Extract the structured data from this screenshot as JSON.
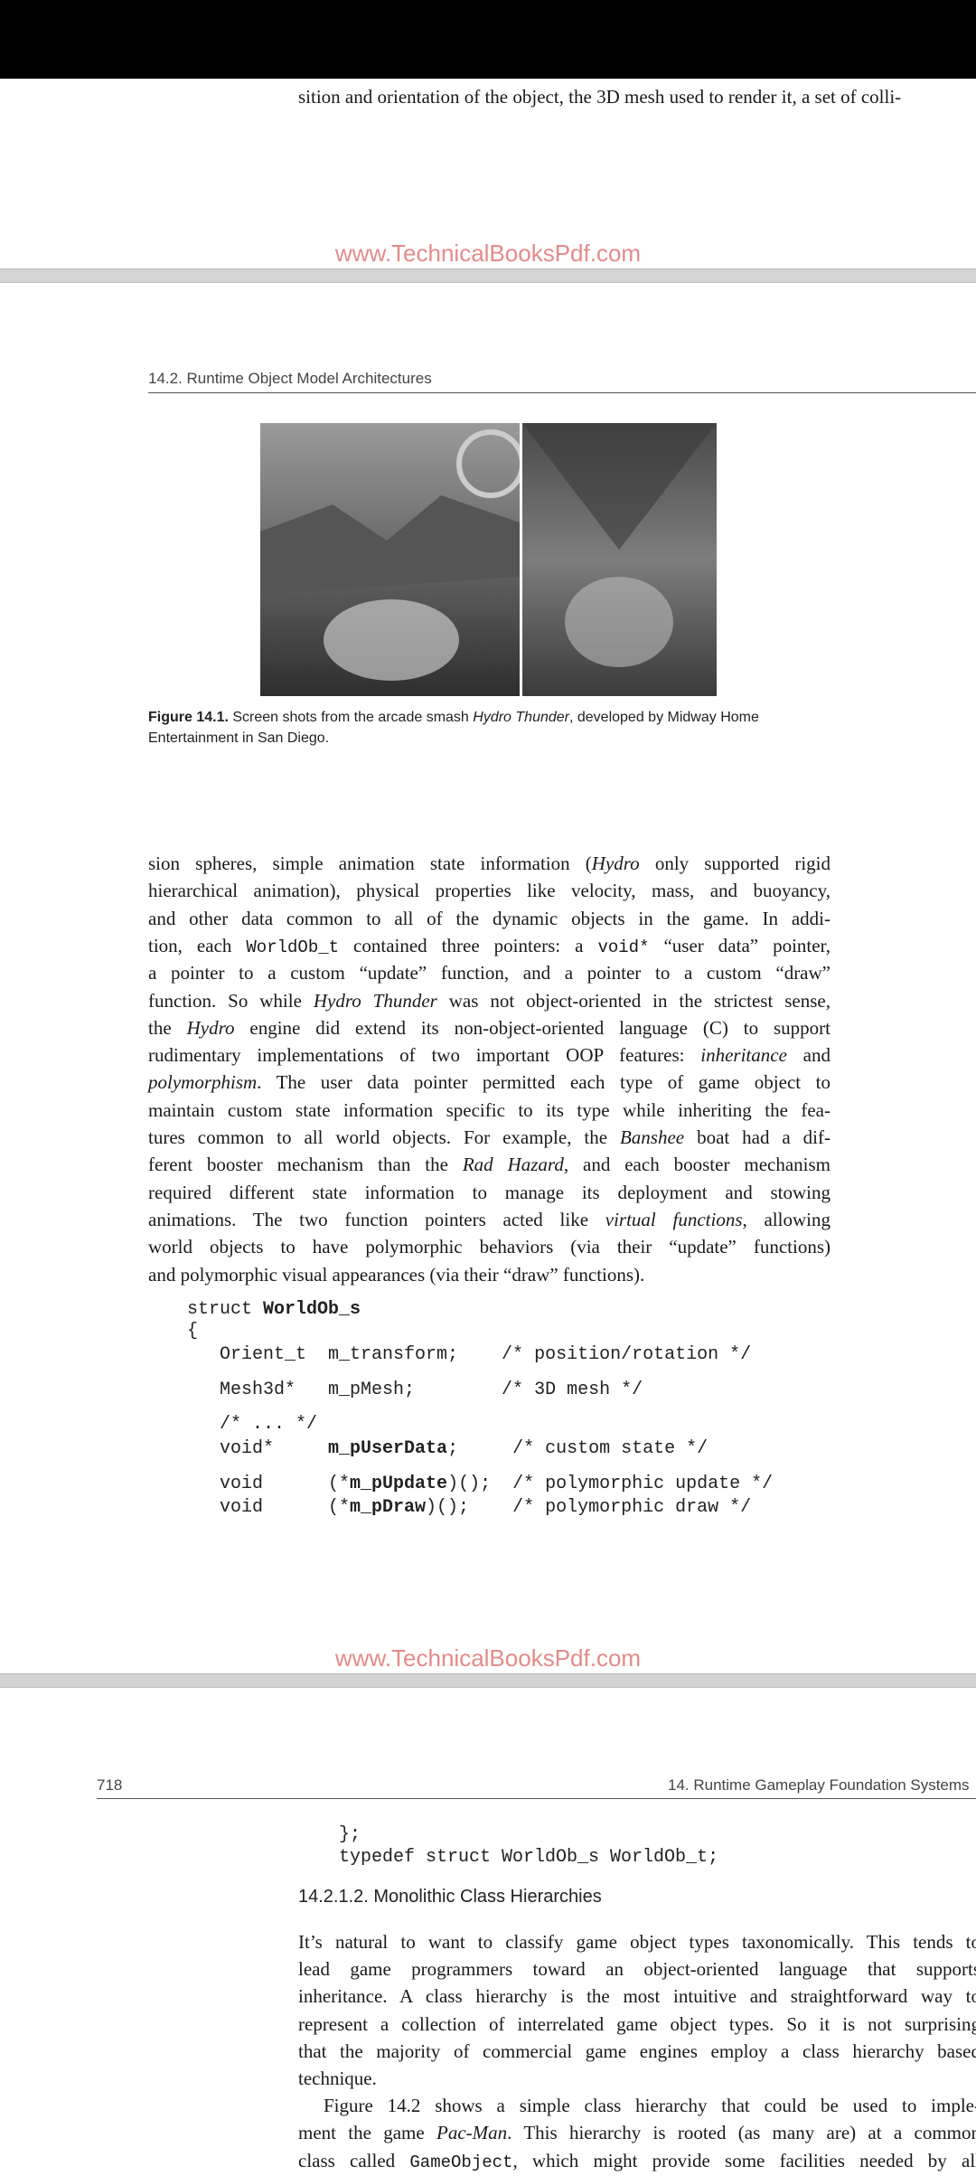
{
  "top_fragment": "sition and orientation of the object, the 3D mesh used to render it, a set of colli-",
  "watermarks": [
    "www.TechnicalBooksPdf.com",
    "www.TechnicalBooksPdf.com"
  ],
  "page1": {
    "running_head": "14.2. Runtime Object Model Architectures",
    "caption": [
      [
        {
          "t": "Figure 14.1.",
          "s": "b"
        },
        {
          "t": "  Screen shots from the arcade smash "
        },
        {
          "t": "Hydro Thunder",
          "s": "i"
        },
        {
          "t": ", developed by Midway Home"
        }
      ],
      [
        {
          "t": "Entertainment in San Diego."
        }
      ]
    ],
    "body": [
      [
        {
          "t": "sion spheres, simple animation state information ("
        },
        {
          "t": "Hydro",
          "s": "i"
        },
        {
          "t": " only supported rigid"
        }
      ],
      [
        {
          "t": "hierarchical animation), physical properties like velocity, mass, and buoyancy,"
        }
      ],
      [
        {
          "t": "and other data common to all of the dynamic objects in the game. In addi-"
        }
      ],
      [
        {
          "t": "tion, each "
        },
        {
          "t": "WorldOb_t",
          "s": "m"
        },
        {
          "t": " contained three pointers: a "
        },
        {
          "t": "void*",
          "s": "m"
        },
        {
          "t": " “user data” pointer,"
        }
      ],
      [
        {
          "t": "a pointer to a custom “update” function, and a pointer to a custom “draw”"
        }
      ],
      [
        {
          "t": "function. So while "
        },
        {
          "t": "Hydro Thunder",
          "s": "i"
        },
        {
          "t": " was not object-oriented in the strictest sense,"
        }
      ],
      [
        {
          "t": "the "
        },
        {
          "t": "Hydro",
          "s": "i"
        },
        {
          "t": " engine did extend its non-object-oriented language (C) to support"
        }
      ],
      [
        {
          "t": "rudimentary implementations of two important OOP features: "
        },
        {
          "t": "inheritance",
          "s": "i"
        },
        {
          "t": " and"
        }
      ],
      [
        {
          "t": "polymorphism",
          "s": "i"
        },
        {
          "t": ". The user data pointer permitted each type of game object to"
        }
      ],
      [
        {
          "t": "maintain custom state information specific to its type while inheriting the fea-"
        }
      ],
      [
        {
          "t": "tures common to all world objects. For example, the "
        },
        {
          "t": "Banshee",
          "s": "i"
        },
        {
          "t": " boat had a dif-"
        }
      ],
      [
        {
          "t": "ferent booster mechanism than the "
        },
        {
          "t": "Rad Hazard",
          "s": "i"
        },
        {
          "t": ", and each booster mechanism"
        }
      ],
      [
        {
          "t": "required different state information to manage its deployment and stowing"
        }
      ],
      [
        {
          "t": "animations. The two function pointers acted like "
        },
        {
          "t": "virtual functions",
          "s": "i"
        },
        {
          "t": ", allowing"
        }
      ],
      [
        {
          "t": "world objects to have polymorphic behaviors (via their “update” functions)"
        }
      ],
      [
        {
          "t": "and polymorphic visual appearances (via their “draw” functions)."
        }
      ]
    ],
    "paragraph_ends": [
      15
    ],
    "code": [
      [
        {
          "t": "struct "
        },
        {
          "t": "WorldOb_s",
          "s": "b"
        }
      ],
      [
        {
          "t": "{"
        }
      ],
      [
        {
          "t": "   Orient_t  m_transform;    /* position/rotation */"
        }
      ],
      [
        {
          "t": "   Mesh3d*   m_pMesh;        /* 3D mesh */"
        }
      ],
      [
        {
          "t": "   /* ... */"
        }
      ],
      [
        {
          "t": "   void*     "
        },
        {
          "t": "m_pUserData",
          "s": "b"
        },
        {
          "t": ";     /* custom state */"
        }
      ],
      [
        {
          "t": "   void      (*"
        },
        {
          "t": "m_pUpdate",
          "s": "b"
        },
        {
          "t": ")();  /* polymorphic update */"
        }
      ],
      [
        {
          "t": "   void      (*"
        },
        {
          "t": "m_pDraw",
          "s": "b"
        },
        {
          "t": ")();    /* polymorphic draw */"
        }
      ]
    ]
  },
  "page2": {
    "page_number": "718",
    "running_head": "14. Runtime Gameplay Foundation Systems",
    "code": [
      [
        {
          "t": "};"
        }
      ],
      [
        {
          "t": "typedef struct WorldOb_s WorldOb_t;"
        }
      ]
    ],
    "heading": "14.2.1.2.  Monolithic Class Hierarchies",
    "body": [
      [
        {
          "t": "It’s natural to want to classify game object types taxonomically. This tends to"
        }
      ],
      [
        {
          "t": "lead game programmers toward an object-oriented language that supports"
        }
      ],
      [
        {
          "t": "inheritance. A class hierarchy is the most intuitive and straightforward way to"
        }
      ],
      [
        {
          "t": "represent a collection of interrelated game object types. So it is not surprising"
        }
      ],
      [
        {
          "t": "that the majority of commercial game engines employ a class hierarchy based"
        }
      ],
      [
        {
          "t": "technique."
        }
      ],
      [
        {
          "t": "Figure 14.2 shows a simple class hierarchy that could be used to imple-"
        }
      ],
      [
        {
          "t": "ment the game "
        },
        {
          "t": "Pac-Man",
          "s": "i"
        },
        {
          "t": ". This hierarchy is rooted (as many are) at a common"
        }
      ],
      [
        {
          "t": "class called "
        },
        {
          "t": "GameObject",
          "s": "m"
        },
        {
          "t": ", which might provide some facilities needed by all"
        }
      ]
    ],
    "paragraph_ends": [
      5
    ],
    "indent_lines": [
      6
    ]
  }
}
